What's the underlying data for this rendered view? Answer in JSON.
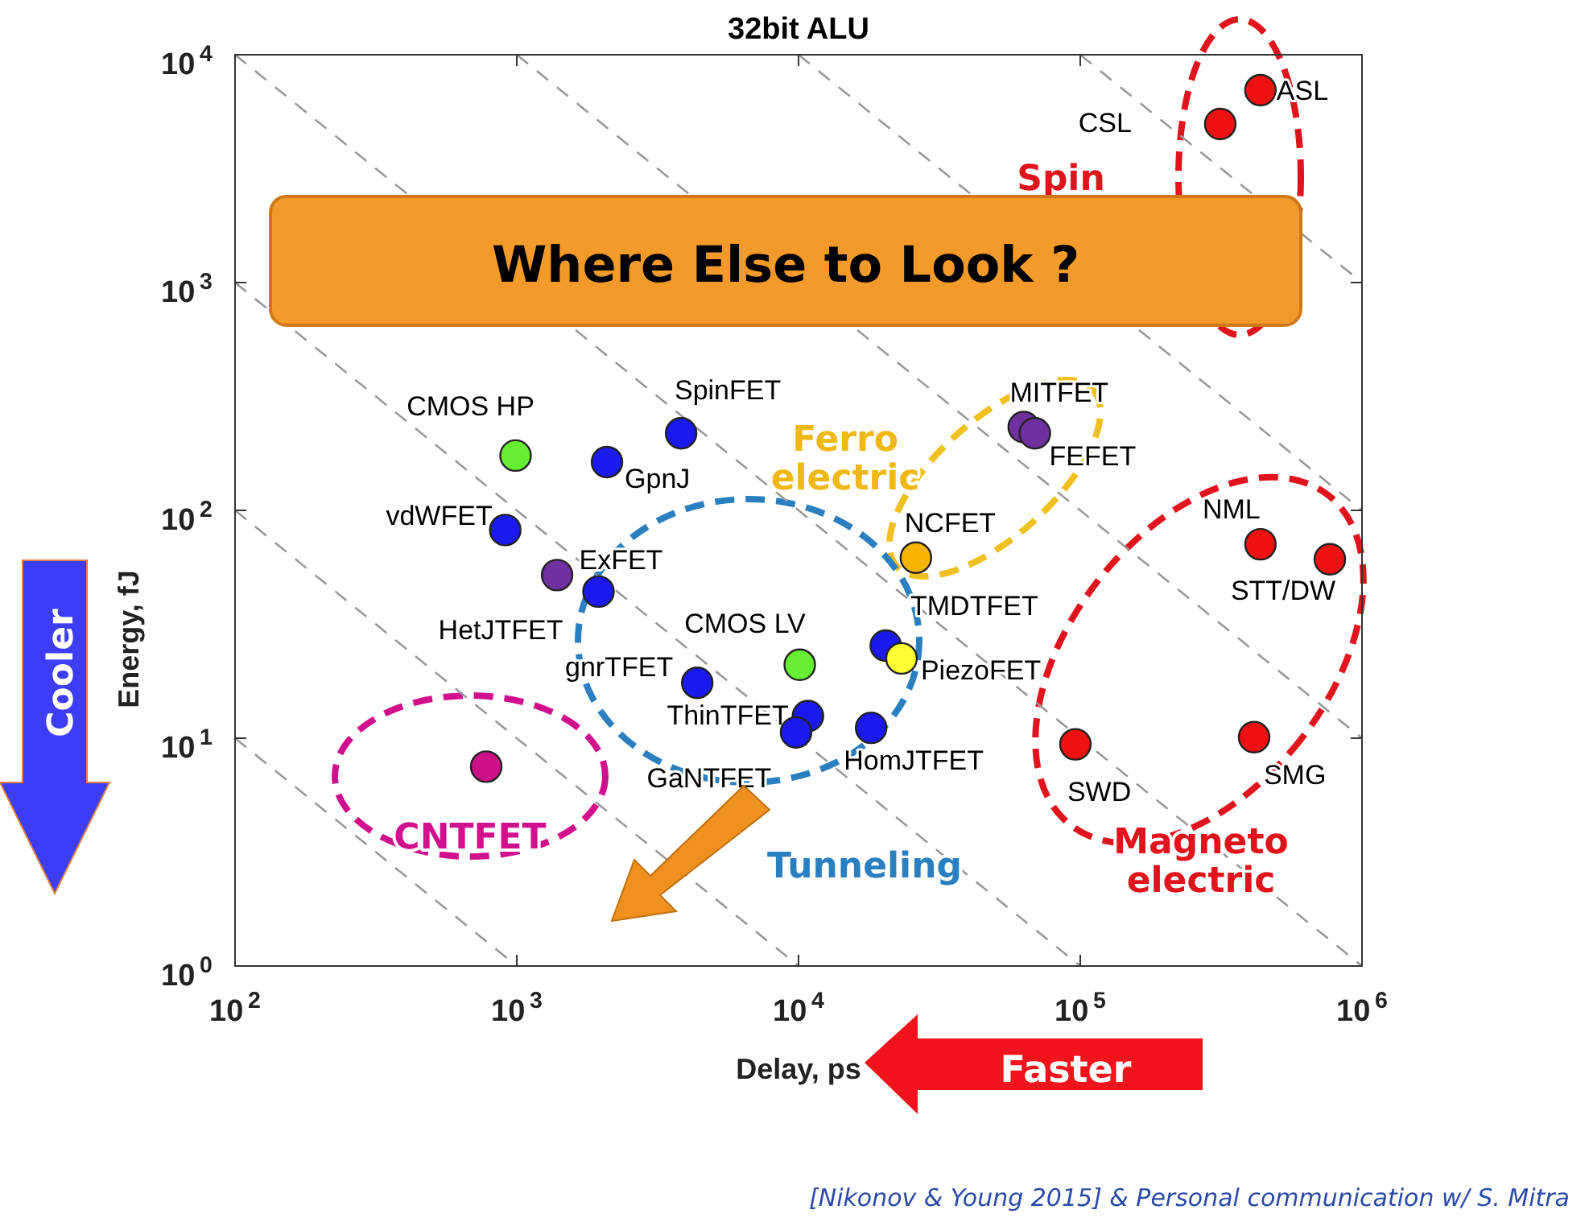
{
  "chart_data": {
    "type": "scatter",
    "title": "32bit ALU",
    "xlabel": "Delay, ps",
    "ylabel": "Energy, fJ",
    "log": "xy",
    "marker": "circle",
    "line_style": "dashed",
    "xlim": [
      100,
      1000000
    ],
    "ylim": [
      1,
      10000
    ],
    "xticks": [
      {
        "value": 100,
        "label": "10$^{2}$"
      },
      {
        "value": 1000,
        "label": "10$^{3}$"
      },
      {
        "value": 10000,
        "label": "10$^{4}$"
      },
      {
        "value": 100000,
        "label": "10$^{5}$"
      },
      {
        "value": 1000000,
        "label": "10$^{6}$"
      }
    ],
    "yticks": [
      {
        "value": 1,
        "label": "10$^{0}$"
      },
      {
        "value": 10,
        "label": "10$^{1}$"
      },
      {
        "value": 100,
        "label": "10$^{2}$"
      },
      {
        "value": 1000,
        "label": "10$^{3}$"
      },
      {
        "value": 10000,
        "label": "10$^{4}$"
      }
    ],
    "series": [
      {
        "type": "line",
        "marker": "none",
        "color": "#999999",
        "x": [
          100,
          1000
        ],
        "values": [
          10,
          1
        ]
      },
      {
        "type": "line",
        "marker": "none",
        "color": "#999999",
        "x": [
          100,
          10000
        ],
        "values": [
          100,
          1
        ]
      },
      {
        "type": "line",
        "marker": "none",
        "color": "#999999",
        "x": [
          100,
          100000
        ],
        "values": [
          1000,
          1
        ]
      },
      {
        "type": "line",
        "marker": "none",
        "color": "#999999",
        "x": [
          100,
          1000000
        ],
        "values": [
          10000,
          1
        ]
      },
      {
        "type": "line",
        "marker": "none",
        "color": "#999999",
        "x": [
          1000,
          1000000
        ],
        "values": [
          10000,
          10
        ]
      },
      {
        "type": "line",
        "marker": "none",
        "color": "#999999",
        "x": [
          10000,
          1000000
        ],
        "values": [
          10000,
          100
        ]
      },
      {
        "type": "line",
        "marker": "none",
        "color": "#999999",
        "x": [
          100000,
          1000000
        ],
        "values": [
          10000,
          1000
        ]
      },
      {
        "name": "CMOS HP",
        "color": "#66ee33",
        "x": [
          990
        ],
        "values": [
          174
        ]
      },
      {
        "name": "GpnJ",
        "color": "#1a1aee",
        "x": [
          2090
        ],
        "values": [
          163
        ]
      },
      {
        "name": "SpinFET",
        "color": "#1a1aee",
        "x": [
          3830
        ],
        "values": [
          218
        ]
      },
      {
        "name": "vdWFET",
        "color": "#1a1aee",
        "x": [
          910
        ],
        "values": [
          82
        ]
      },
      {
        "name": "HetJTFET",
        "color": "#7030a0",
        "x": [
          1390
        ],
        "values": [
          52
        ]
      },
      {
        "name": "ExFET",
        "color": "#1a1aee",
        "x": [
          1950
        ],
        "values": [
          44
        ]
      },
      {
        "name": "gnrTFET",
        "color": "#1a1aee",
        "x": [
          4370
        ],
        "values": [
          17.5
        ]
      },
      {
        "name": "CMOS LV",
        "color": "#66ee33",
        "x": [
          10100
        ],
        "values": [
          21
        ]
      },
      {
        "name": "ThinTFET",
        "color": "#1a1aee",
        "x": [
          10800
        ],
        "values": [
          12.5
        ]
      },
      {
        "name": "GaNTFET",
        "color": "#1a1aee",
        "x": [
          9800
        ],
        "values": [
          10.6
        ]
      },
      {
        "name": "HomJTFET",
        "color": "#1a1aee",
        "x": [
          18100
        ],
        "values": [
          11.1
        ]
      },
      {
        "name": "TMDTFET",
        "color": "#1a1aee",
        "x": [
          20400
        ],
        "values": [
          25.5
        ]
      },
      {
        "name": "PiezoFET",
        "color": "#ffff33",
        "x": [
          23200
        ],
        "values": [
          22.4
        ]
      },
      {
        "name": "NCFET",
        "color": "#f5b400",
        "x": [
          26100
        ],
        "values": [
          62
        ]
      },
      {
        "name": "MITFET",
        "color": "#7030a0",
        "x": [
          63000
        ],
        "values": [
          232
        ]
      },
      {
        "name": "FEFET",
        "color": "#7030a0",
        "x": [
          69000
        ],
        "values": [
          218
        ]
      },
      {
        "name": "NML",
        "color": "#ee1111",
        "x": [
          436000
        ],
        "values": [
          71
        ]
      },
      {
        "name": "STT/DW",
        "color": "#ee1111",
        "x": [
          769000
        ],
        "values": [
          61
        ]
      },
      {
        "name": "SWD",
        "color": "#ee1111",
        "x": [
          96100
        ],
        "values": [
          9.4
        ]
      },
      {
        "name": "SMG",
        "color": "#ee1111",
        "x": [
          414000
        ],
        "values": [
          10.1
        ]
      },
      {
        "color": "#cc1188",
        "x": [
          779
        ],
        "values": [
          7.5
        ]
      },
      {
        "name": "CSL",
        "color": "#ee1111",
        "x": [
          314000
        ],
        "values": [
          4970
        ]
      },
      {
        "name": "ASL",
        "color": "#ee1111",
        "x": [
          436000
        ],
        "values": [
          6990
        ]
      }
    ],
    "annotations": [
      "Where Else to Look ?",
      "Spin",
      "Ferro electric",
      "Tunneling",
      "Magneto electric",
      "CNTFET",
      "Cooler",
      "Faster",
      "[Nikonov & Young 2015] & Personal communication w/ S. Mitra"
    ]
  }
}
